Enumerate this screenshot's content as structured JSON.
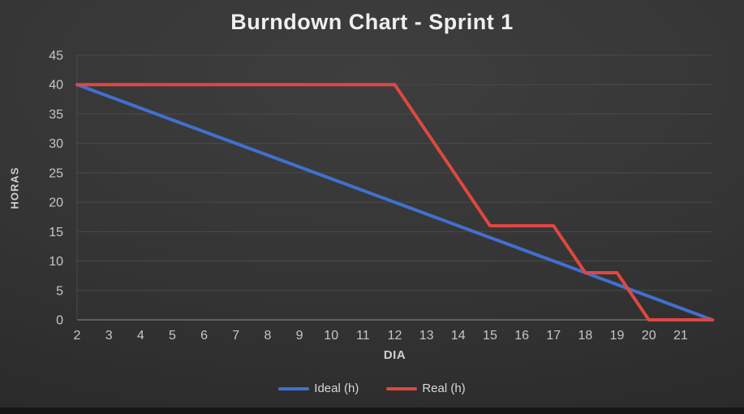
{
  "colors": {
    "ideal": "#4170CE",
    "real": "#E04741",
    "grid": "#4A4A4A",
    "axis_line": "#6E6E6E",
    "left_axis_line": "#4A4A4A",
    "tick_text": "#C6C6C6",
    "title_text": "#EFEFEF",
    "axis_title_text": "#CFCFCF",
    "legend_text": "#D8D8D8"
  },
  "chart_data": {
    "type": "line",
    "title": "Burndown Chart - Sprint 1",
    "xlabel": "DIA",
    "ylabel": "HORAS",
    "x": [
      2,
      3,
      4,
      5,
      6,
      7,
      8,
      9,
      10,
      11,
      12,
      13,
      14,
      15,
      16,
      17,
      18,
      19,
      20,
      21,
      22
    ],
    "x_tick_labels": [
      2,
      3,
      4,
      5,
      6,
      7,
      8,
      9,
      10,
      11,
      12,
      13,
      14,
      15,
      16,
      17,
      18,
      19,
      20,
      21
    ],
    "ylim": [
      0,
      45
    ],
    "y_ticks": [
      0,
      5,
      10,
      15,
      20,
      25,
      30,
      35,
      40,
      45
    ],
    "grid": "horizontal",
    "legend_position": "bottom",
    "series": [
      {
        "name": "Ideal (h)",
        "color": "#4170CE",
        "values": [
          40,
          38,
          36,
          34,
          32,
          30,
          28,
          26,
          24,
          22,
          20,
          18,
          16,
          14,
          12,
          10,
          8,
          6,
          4,
          2,
          0
        ]
      },
      {
        "name": "Real (h)",
        "color": "#E04741",
        "values": [
          40,
          40,
          40,
          40,
          40,
          40,
          40,
          40,
          40,
          40,
          40,
          32,
          24,
          16,
          16,
          16,
          8,
          8,
          0,
          0,
          0
        ]
      }
    ]
  }
}
